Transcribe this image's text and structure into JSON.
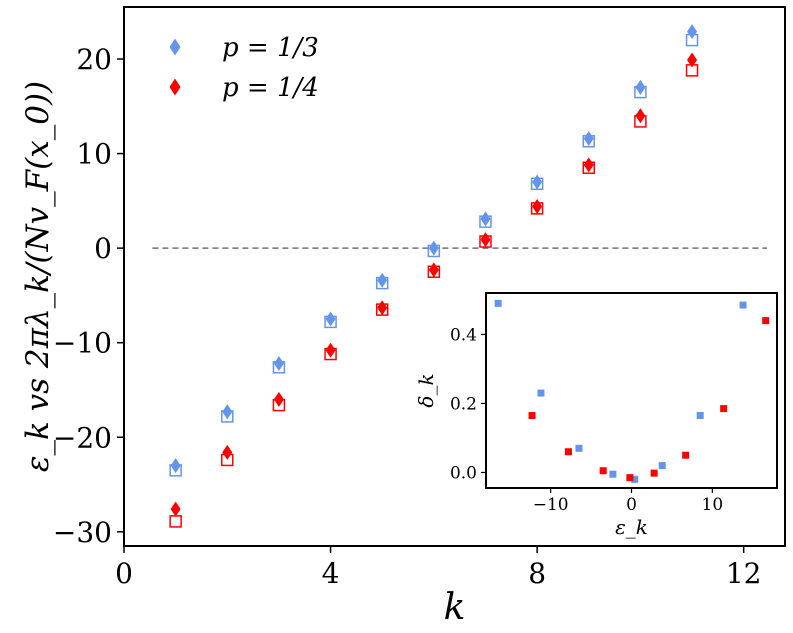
{
  "chart_data": [
    {
      "type": "scatter",
      "title": "",
      "xlabel": "k",
      "ylabel": "ε_k  vs  2πλ_k/(Nv_F(x_0))",
      "xlim": [
        0,
        12.8
      ],
      "ylim": [
        -31.5,
        25.5
      ],
      "xticks": [
        0,
        4,
        8,
        12
      ],
      "yticks": [
        -30,
        -20,
        -10,
        0,
        10,
        20
      ],
      "grid": false,
      "legend_position": "top-left",
      "reference_line": {
        "y": 0,
        "x_range": [
          0.55,
          12.45
        ],
        "style": "dashed",
        "color": "#707070"
      },
      "series": [
        {
          "name": "p = 1/3",
          "color": "#6495ED",
          "k": [
            1,
            2,
            3,
            4,
            5,
            6,
            7,
            8,
            9,
            10,
            11
          ],
          "epsilon": [
            -23.5,
            -17.8,
            -12.6,
            -7.8,
            -3.7,
            -0.3,
            2.8,
            6.8,
            11.3,
            16.5,
            22.0
          ],
          "lambda_scaled": [
            -23.0,
            -17.3,
            -12.2,
            -7.5,
            -3.4,
            0.0,
            3.1,
            7.0,
            11.6,
            17.0,
            22.9
          ]
        },
        {
          "name": "p = 1/4",
          "color": "#FF0000",
          "k": [
            1,
            2,
            3,
            4,
            5,
            6,
            7,
            8,
            9,
            10,
            11
          ],
          "epsilon": [
            -28.9,
            -22.4,
            -16.6,
            -11.2,
            -6.5,
            -2.5,
            0.7,
            4.2,
            8.5,
            13.4,
            18.8
          ],
          "lambda_scaled": [
            -27.6,
            -21.6,
            -16.0,
            -10.8,
            -6.3,
            -2.3,
            0.9,
            4.4,
            8.8,
            14.0,
            19.9
          ]
        }
      ]
    },
    {
      "type": "scatter",
      "title": "",
      "xlabel": "ε_k",
      "ylabel": "δ_k",
      "xlim": [
        -18,
        18
      ],
      "ylim": [
        -0.045,
        0.52
      ],
      "xticks": [
        -10,
        0,
        10
      ],
      "yticks": [
        0.0,
        0.2,
        0.4
      ],
      "grid": false,
      "series": [
        {
          "name": "p = 1/3",
          "color": "#6495ED",
          "x": [
            -16.5,
            -11.2,
            -6.5,
            -2.3,
            0.4,
            3.8,
            8.5,
            13.8
          ],
          "y": [
            0.49,
            0.23,
            0.07,
            -0.005,
            -0.02,
            0.02,
            0.165,
            0.485
          ]
        },
        {
          "name": "p = 1/4",
          "color": "#FF0000",
          "x": [
            -12.3,
            -7.8,
            -3.5,
            -0.2,
            2.8,
            6.7,
            11.4,
            16.6
          ],
          "y": [
            0.165,
            0.06,
            0.005,
            -0.015,
            -0.002,
            0.05,
            0.185,
            0.44
          ]
        }
      ]
    }
  ]
}
